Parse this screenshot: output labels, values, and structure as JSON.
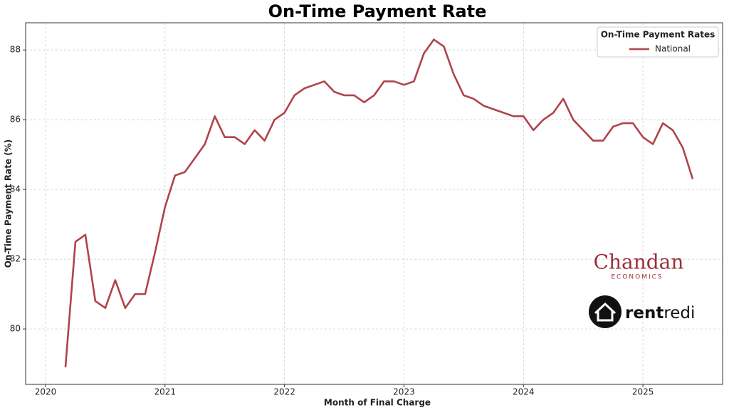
{
  "chart_data": {
    "type": "line",
    "title": "On-Time Payment Rate",
    "x_label": "Month of Final Charge",
    "y_label": "On-Time Payment Rate (%)",
    "x": [
      "2020-03",
      "2020-04",
      "2020-05",
      "2020-06",
      "2020-07",
      "2020-08",
      "2020-09",
      "2020-10",
      "2020-11",
      "2020-12",
      "2021-01",
      "2021-02",
      "2021-03",
      "2021-04",
      "2021-05",
      "2021-06",
      "2021-07",
      "2021-08",
      "2021-09",
      "2021-10",
      "2021-11",
      "2021-12",
      "2022-01",
      "2022-02",
      "2022-03",
      "2022-04",
      "2022-05",
      "2022-06",
      "2022-07",
      "2022-08",
      "2022-09",
      "2022-10",
      "2022-11",
      "2022-12",
      "2023-01",
      "2023-02",
      "2023-03",
      "2023-04",
      "2023-05",
      "2023-06",
      "2023-07",
      "2023-08",
      "2023-09",
      "2023-10",
      "2023-11",
      "2023-12",
      "2024-01",
      "2024-02",
      "2024-03",
      "2024-04",
      "2024-05",
      "2024-06",
      "2024-07",
      "2024-08",
      "2024-09",
      "2024-10",
      "2024-11",
      "2024-12",
      "2025-01",
      "2025-02",
      "2025-03",
      "2025-04",
      "2025-05",
      "2025-06"
    ],
    "series": [
      {
        "name": "National",
        "color": "#b0434b",
        "values": [
          78.9,
          82.5,
          82.7,
          80.8,
          80.6,
          81.4,
          80.6,
          81.0,
          81.0,
          82.2,
          83.5,
          84.4,
          84.5,
          84.9,
          85.3,
          86.1,
          85.5,
          85.5,
          85.3,
          85.7,
          85.4,
          86.0,
          86.2,
          86.7,
          86.9,
          87.0,
          87.1,
          86.8,
          86.7,
          86.7,
          86.5,
          86.7,
          87.1,
          87.1,
          87.0,
          87.1,
          87.9,
          88.3,
          88.1,
          87.3,
          86.7,
          86.6,
          86.4,
          86.3,
          86.2,
          86.1,
          86.1,
          85.7,
          86.0,
          86.2,
          86.6,
          86.0,
          85.7,
          85.4,
          85.4,
          85.8,
          85.9,
          85.9,
          85.5,
          85.3,
          85.9,
          85.7,
          85.2,
          84.3
        ]
      }
    ],
    "xlim": [
      "2019-11",
      "2025-09"
    ],
    "xticks": [
      2020,
      2021,
      2022,
      2023,
      2024,
      2025
    ],
    "ylim": [
      78.41,
      88.78
    ],
    "yticks": [
      80,
      82,
      84,
      86,
      88
    ],
    "grid": true,
    "legend_title": "On-Time Payment Rates",
    "legend_position": "upper right",
    "logos": {
      "chandan": "Chandan",
      "chandan_sub": "ECONOMICS",
      "rentredi_a": "rent",
      "rentredi_b": "redi"
    }
  }
}
